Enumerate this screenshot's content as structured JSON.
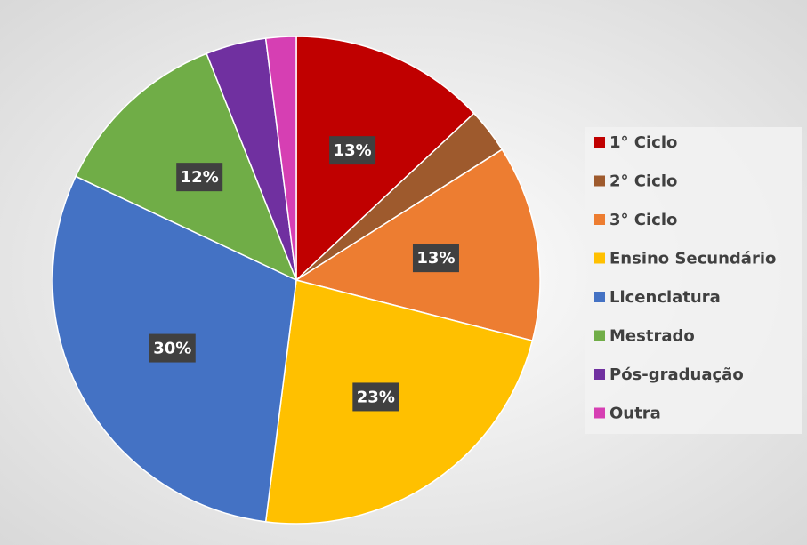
{
  "chart_data": {
    "type": "pie",
    "categories": [
      "1° Ciclo",
      "2° Ciclo",
      "3° Ciclo",
      "Ensino Secundário",
      "Licenciatura",
      "Mestrado",
      "Pós-graduação",
      "Outra"
    ],
    "values": [
      13,
      3,
      13,
      23,
      30,
      12,
      4,
      2
    ],
    "value_labels": [
      "13%",
      null,
      "13%",
      "23%",
      "30%",
      "12%",
      null,
      null
    ],
    "colors": [
      "#c00000",
      "#9e5a2d",
      "#ed7d31",
      "#ffc000",
      "#4472c4",
      "#70ad47",
      "#7030a0",
      "#d63fb3"
    ],
    "legend": "right"
  }
}
